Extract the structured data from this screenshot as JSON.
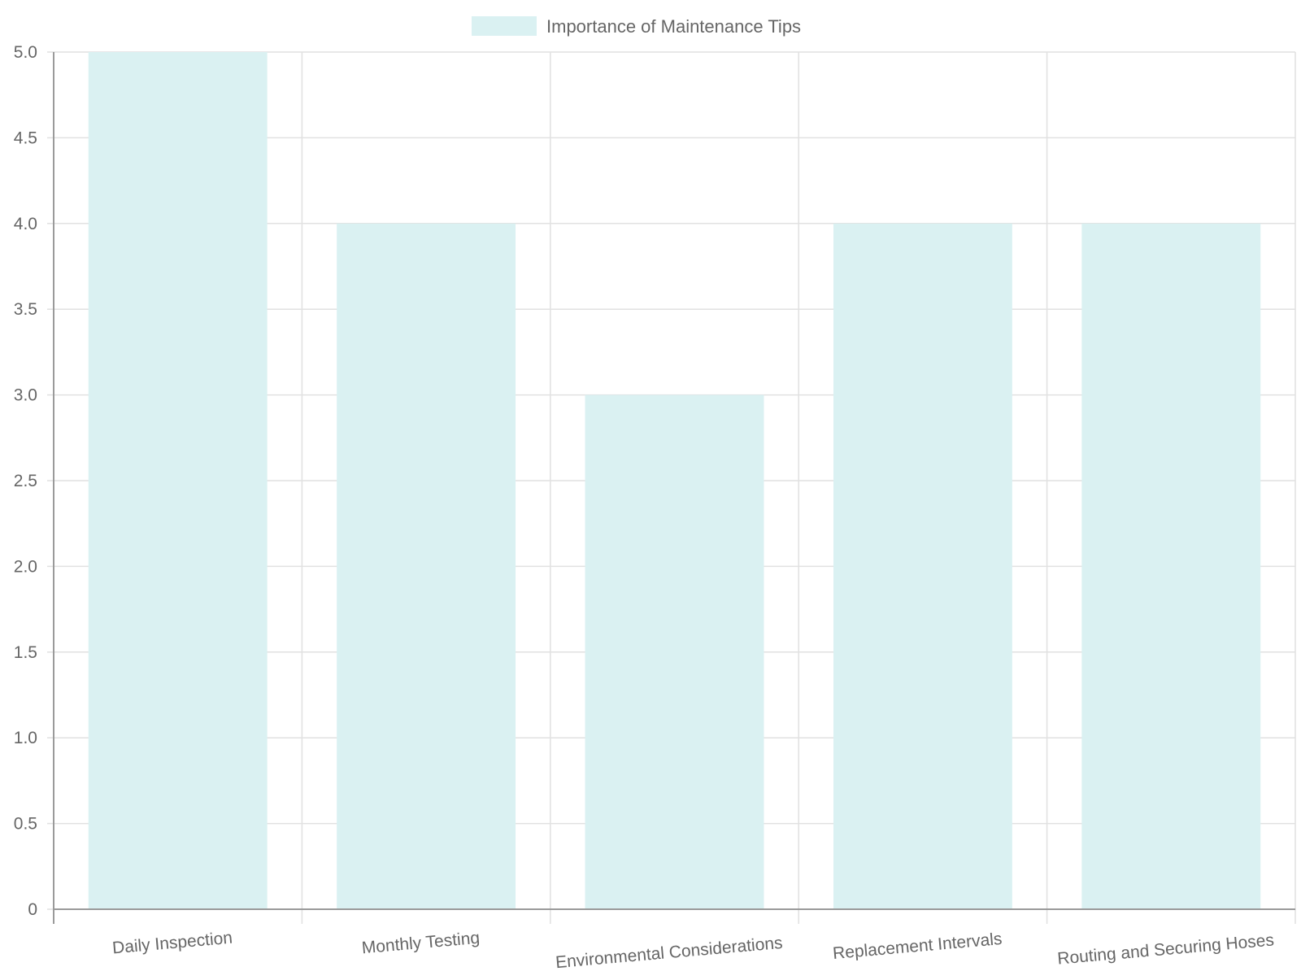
{
  "chart_data": {
    "type": "bar",
    "categories": [
      "Daily Inspection",
      "Monthly Testing",
      "Environmental Considerations",
      "Replacement Intervals",
      "Routing and Securing Hoses"
    ],
    "series": [
      {
        "name": "Importance of Maintenance Tips",
        "values": [
          5,
          4,
          3,
          4,
          4
        ],
        "color": "#daf1f2"
      }
    ],
    "ylim": [
      0,
      5
    ],
    "yticks": [
      "0",
      "0.5",
      "1.0",
      "1.5",
      "2.0",
      "2.5",
      "3.0",
      "3.5",
      "4.0",
      "4.5",
      "5.0"
    ],
    "grid": true,
    "legend_position": "top-center",
    "xlabel": "",
    "ylabel": "",
    "title": ""
  }
}
